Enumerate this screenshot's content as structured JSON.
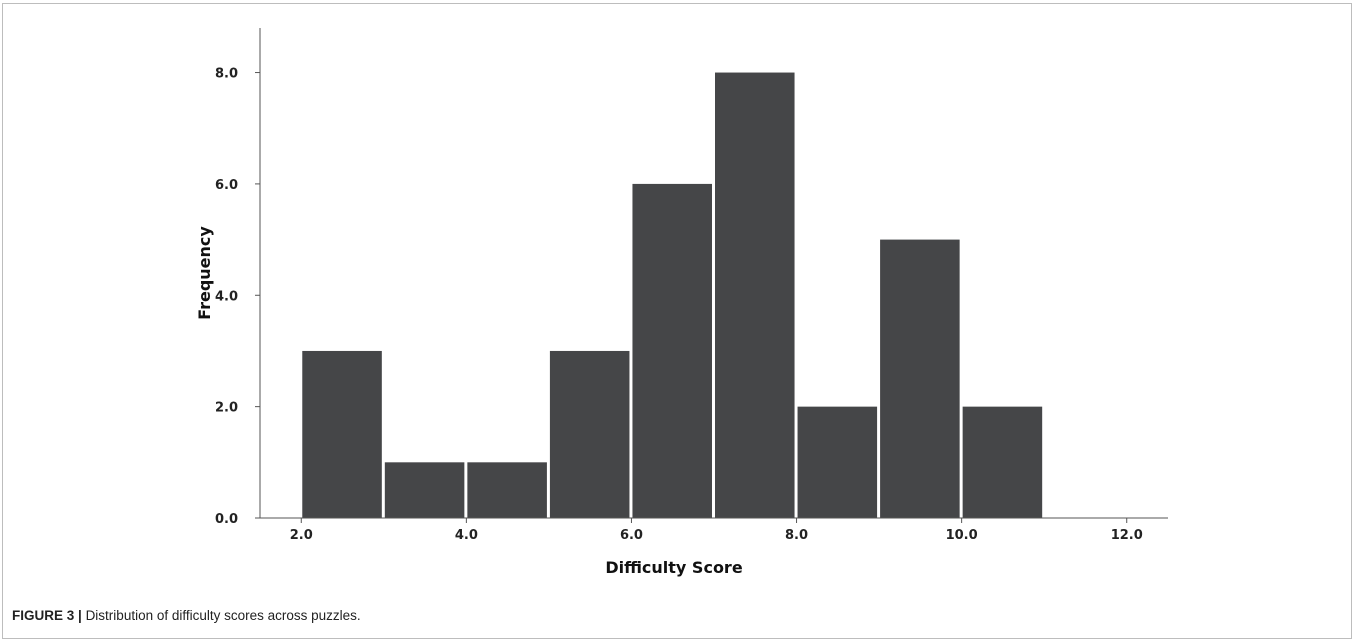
{
  "caption": {
    "label": "FIGURE 3 |",
    "text": "Distribution of difficulty scores across puzzles."
  },
  "chart_data": {
    "type": "bar",
    "xlabel": "Difficulty Score",
    "ylabel": "Frequency",
    "bar_color": "#454648",
    "xlim": [
      1.5,
      12.5
    ],
    "ylim": [
      0,
      8.8
    ],
    "x_ticks": [
      2.0,
      4.0,
      6.0,
      8.0,
      10.0,
      12.0
    ],
    "x_tick_labels": [
      "2.0",
      "4.0",
      "6.0",
      "8.0",
      "10.0",
      "12.0"
    ],
    "y_ticks": [
      0,
      2,
      4,
      6,
      8
    ],
    "y_tick_labels": [
      "0.0",
      "2.0",
      "4.0",
      "6.0",
      "8.0"
    ],
    "bins": [
      {
        "x0": 2,
        "x1": 3,
        "count": 3
      },
      {
        "x0": 3,
        "x1": 4,
        "count": 1
      },
      {
        "x0": 4,
        "x1": 5,
        "count": 1
      },
      {
        "x0": 5,
        "x1": 6,
        "count": 3
      },
      {
        "x0": 6,
        "x1": 7,
        "count": 6
      },
      {
        "x0": 7,
        "x1": 8,
        "count": 8
      },
      {
        "x0": 8,
        "x1": 9,
        "count": 2
      },
      {
        "x0": 9,
        "x1": 10,
        "count": 5
      },
      {
        "x0": 10,
        "x1": 11,
        "count": 2
      }
    ]
  }
}
